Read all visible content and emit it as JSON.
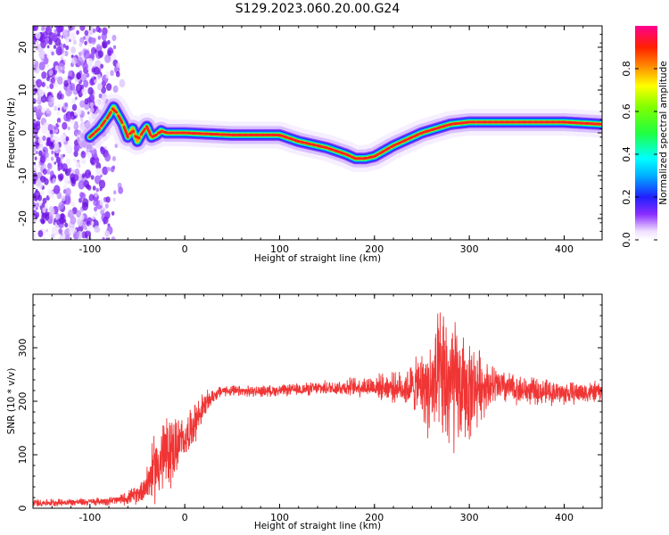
{
  "title": "S129.2023.060.20.00.G24",
  "colors": {
    "snr_line": "#f03535",
    "ridge": "#ff2020",
    "noise": "#7a1cf0",
    "axis": "#000000"
  },
  "chart_data": [
    {
      "type": "heatmap",
      "title": "S129.2023.060.20.00.G24",
      "xlabel": "Height of straight line (km)",
      "ylabel": "Frequency (Hz)",
      "xlim": [
        -160,
        440
      ],
      "ylim": [
        -25,
        25
      ],
      "xticks": [
        -100,
        0,
        100,
        200,
        300,
        400
      ],
      "yticks": [
        -20,
        -10,
        0,
        10,
        20
      ],
      "colorbar": {
        "label": "Normalized spectral amplitude",
        "range": [
          0,
          1
        ],
        "ticks": [
          "0.0",
          "0.2",
          "0.4",
          "0.6",
          "0.8"
        ],
        "colormap": "rainbow (white, violet, blue, cyan, green, yellow, red, magenta)"
      },
      "ridge": {
        "x": [
          -100,
          -90,
          -80,
          -75,
          -70,
          -65,
          -60,
          -55,
          -50,
          -45,
          -40,
          -35,
          -30,
          -25,
          -20,
          0,
          50,
          100,
          120,
          150,
          170,
          180,
          190,
          200,
          220,
          250,
          280,
          300,
          350,
          400,
          440
        ],
        "y": [
          -1,
          1,
          4,
          6,
          4,
          2,
          -1,
          1,
          -2,
          0,
          1.5,
          -1,
          -0.5,
          0.5,
          0,
          0,
          -0.5,
          -0.5,
          -2,
          -3.5,
          -5,
          -6,
          -6,
          -5.5,
          -3,
          0,
          2,
          2.5,
          2.5,
          2.5,
          2
        ]
      }
    },
    {
      "type": "line",
      "xlabel": "Height of straight line (km)",
      "ylabel": "SNR (10 * v/v)",
      "xlim": [
        -160,
        440
      ],
      "ylim": [
        0,
        400
      ],
      "xticks": [
        -100,
        0,
        100,
        200,
        300,
        400
      ],
      "yticks": [
        0,
        100,
        200,
        300
      ],
      "series": [
        {
          "x": [
            -160,
            -100,
            -70,
            -50,
            -40,
            -30,
            -20,
            -10,
            0,
            10,
            20,
            30,
            40,
            60,
            100,
            150,
            200,
            230,
            250,
            260,
            270,
            280,
            290,
            300,
            310,
            320,
            340,
            360,
            400,
            440
          ],
          "values": [
            10,
            12,
            15,
            25,
            45,
            80,
            100,
            115,
            130,
            160,
            190,
            210,
            220,
            218,
            220,
            225,
            228,
            225,
            230,
            220,
            240,
            230,
            220,
            220,
            230,
            230,
            225,
            220,
            215,
            218
          ],
          "spread": [
            8,
            8,
            10,
            20,
            40,
            80,
            90,
            70,
            40,
            45,
            30,
            15,
            12,
            12,
            12,
            15,
            25,
            35,
            70,
            120,
            150,
            170,
            120,
            110,
            80,
            50,
            35,
            30,
            25,
            22
          ]
        }
      ]
    }
  ]
}
